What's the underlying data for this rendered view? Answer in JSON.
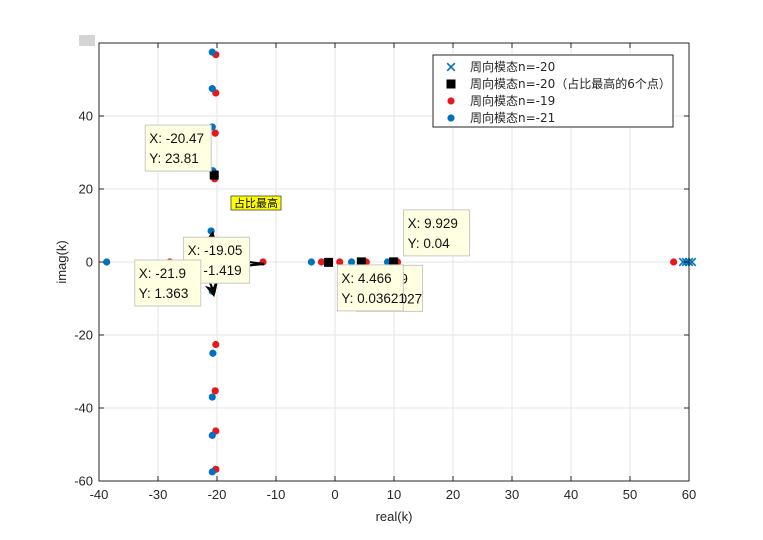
{
  "chart_data": {
    "type": "scatter",
    "xlabel": "real(k)",
    "ylabel": "imag(k)",
    "xlim": [
      -40,
      60
    ],
    "ylim": [
      -60,
      60
    ],
    "xticks": [
      -40,
      -30,
      -20,
      -10,
      0,
      10,
      20,
      30,
      40,
      50,
      60
    ],
    "yticks": [
      -60,
      -40,
      -20,
      0,
      20,
      40
    ],
    "grid": true,
    "legend_position": "top-right",
    "series": [
      {
        "name": "周向模态n=-20",
        "marker": "x",
        "color": "#0072bd",
        "points": [
          [
            59.0,
            0
          ],
          [
            59.5,
            0
          ],
          [
            60.0,
            0
          ],
          [
            60.5,
            0
          ]
        ]
      },
      {
        "name": "周向模态n=-20（占比最高的6个点）",
        "marker": "square",
        "color": "#000000",
        "points": [
          [
            -20.47,
            23.81
          ],
          [
            -21.9,
            1.363
          ],
          [
            -19.05,
            -1.419
          ],
          [
            -1.09,
            -0.1027
          ],
          [
            4.466,
            0.03621
          ],
          [
            9.929,
            0.04
          ]
        ]
      },
      {
        "name": "周向模态n=-19",
        "marker": "circle",
        "color": "#e3191c",
        "points": [
          [
            -20.2,
            56.8
          ],
          [
            -20.2,
            46.3
          ],
          [
            -20.3,
            35.3
          ],
          [
            -20.4,
            22.8
          ],
          [
            -28.0,
            0
          ],
          [
            -12.2,
            0
          ],
          [
            -2.3,
            0
          ],
          [
            0.8,
            0
          ],
          [
            5.3,
            0
          ],
          [
            10.6,
            0
          ],
          [
            57.4,
            0
          ],
          [
            -20.2,
            -22.6
          ],
          [
            -20.3,
            -35.3
          ],
          [
            -20.2,
            -46.3
          ],
          [
            -20.2,
            -56.8
          ]
        ]
      },
      {
        "name": "周向模态n=-21",
        "marker": "circle",
        "color": "#0072bd",
        "points": [
          [
            -20.8,
            57.5
          ],
          [
            -20.8,
            47.5
          ],
          [
            -20.8,
            37.0
          ],
          [
            -20.7,
            25.0
          ],
          [
            -21.0,
            8.5
          ],
          [
            -38.7,
            0
          ],
          [
            -4.0,
            0
          ],
          [
            2.8,
            0
          ],
          [
            8.9,
            0
          ],
          [
            -20.8,
            -8.0
          ],
          [
            -20.7,
            -25.0
          ],
          [
            -20.8,
            -37.0
          ],
          [
            -20.8,
            -47.5
          ],
          [
            -20.8,
            -57.5
          ]
        ]
      }
    ],
    "datatips": [
      {
        "x_text": "X: -20.47",
        "y_text": "Y: 23.81",
        "px": -20.47,
        "py": 23.81
      },
      {
        "x_text": "X: -19.05",
        "y_text": "Y: -1.419",
        "px": -19.05,
        "py": -1.419
      },
      {
        "x_text": "X: 9.929",
        "y_text": "Y: 0.04",
        "px": 9.929,
        "py": 0.04
      },
      {
        "x_text": "X: -21.9",
        "y_text": "Y: 1.363",
        "px": -21.9,
        "py": 1.363
      },
      {
        "x_text": "X: -1.09",
        "y_text": "Y: -0.1027",
        "px": -1.09,
        "py": -0.1027
      },
      {
        "x_text": "X: 4.466",
        "y_text": "Y: 0.03621",
        "px": 4.466,
        "py": 0.03621
      }
    ],
    "annotation": "占比最高"
  },
  "colors": {
    "axes": "#262626",
    "grid": "#e6e6e6",
    "tip_fill": "#ffffe1",
    "tip_border": "#c8c8c8",
    "note_fill": "#ffff00"
  }
}
